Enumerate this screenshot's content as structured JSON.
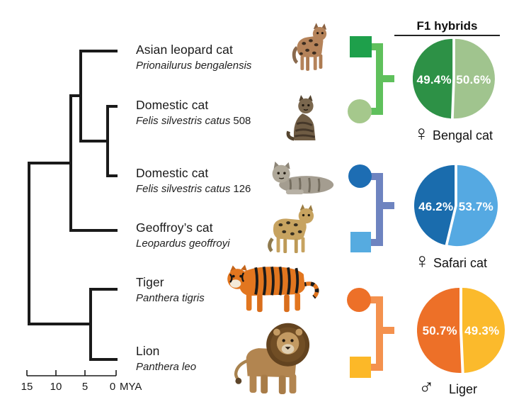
{
  "header": {
    "title": "F1 hybrids"
  },
  "phylogeny": {
    "line_color": "#1a1a1a",
    "species": [
      {
        "common": "Asian leopard cat",
        "scientific": "Prionailurus bengalensis",
        "id": ""
      },
      {
        "common": "Domestic cat",
        "scientific": "Felis silvestris catus",
        "id": "508"
      },
      {
        "common": "Domestic cat",
        "scientific": "Felis silvestris catus",
        "id": "126"
      },
      {
        "common": "Geoffroy’s cat",
        "scientific": "Leopardus geoffroyi",
        "id": ""
      },
      {
        "common": "Tiger",
        "scientific": "Panthera tigris",
        "id": ""
      },
      {
        "common": "Lion",
        "scientific": "Panthera leo",
        "id": ""
      }
    ],
    "axis": {
      "ticks": [
        "15",
        "10",
        "5",
        "0"
      ],
      "unit": "MYA"
    }
  },
  "hybrid_groups": [
    {
      "hybrid": "Bengal cat",
      "sex": "female",
      "sex_symbol": "♀",
      "top_marker": {
        "shape": "square",
        "color": "#1ea04b"
      },
      "bottom_marker": {
        "shape": "circle",
        "color": "#a5c88c"
      },
      "bracket_color": "#5fc05c"
    },
    {
      "hybrid": "Safari cat",
      "sex": "female",
      "sex_symbol": "♀",
      "top_marker": {
        "shape": "circle",
        "color": "#1d6db3"
      },
      "bottom_marker": {
        "shape": "square",
        "color": "#56abe0"
      },
      "bracket_color": "#6e84c0"
    },
    {
      "hybrid": "Liger",
      "sex": "male",
      "sex_symbol": "♂",
      "top_marker": {
        "shape": "circle",
        "color": "#ed7028"
      },
      "bottom_marker": {
        "shape": "square",
        "color": "#fcb828"
      },
      "bracket_color": "#f4914e"
    }
  ],
  "chart_data": [
    {
      "type": "pie",
      "title": "Bengal cat",
      "group_header": "F1 hybrids",
      "legend_position": "none",
      "start": "top",
      "direction": "clockwise",
      "slices": [
        {
          "display": "49.4%",
          "value": 49.4,
          "color": "#2d9146",
          "side": "left"
        },
        {
          "display": "50.6%",
          "value": 50.6,
          "color": "#a0c48e",
          "side": "right"
        }
      ]
    },
    {
      "type": "pie",
      "title": "Safari cat",
      "group_header": "F1 hybrids",
      "legend_position": "none",
      "start": "top",
      "direction": "clockwise",
      "slices": [
        {
          "display": "46.2%",
          "value": 46.2,
          "color": "#1a6cad",
          "side": "left"
        },
        {
          "display": "53.7%",
          "value": 53.7,
          "color": "#55a9e2",
          "side": "right"
        }
      ]
    },
    {
      "type": "pie",
      "title": "Liger",
      "group_header": "F1 hybrids",
      "legend_position": "none",
      "start": "top",
      "direction": "clockwise",
      "slices": [
        {
          "display": "50.7%",
          "value": 50.7,
          "color": "#ed7028",
          "side": "left"
        },
        {
          "display": "49.3%",
          "value": 49.3,
          "color": "#fbba2c",
          "side": "right"
        }
      ]
    }
  ]
}
